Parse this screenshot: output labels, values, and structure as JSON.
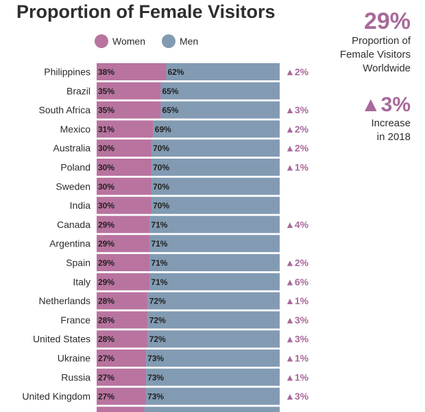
{
  "title": "Proportion of Female Visitors",
  "legend": {
    "women": "Women",
    "men": "Men"
  },
  "colors": {
    "women": "#b9739f",
    "men": "#829bb3",
    "accent": "#a8699a"
  },
  "sidebar": {
    "worldwide_pct": "29%",
    "worldwide_label_1": "Proportion of",
    "worldwide_label_2": "Female Visitors",
    "worldwide_label_3": "Worldwide",
    "increase": "▲3%",
    "increase_label_1": "Increase",
    "increase_label_2": "in 2018"
  },
  "chart_data": {
    "type": "bar",
    "stacked": true,
    "orientation": "horizontal",
    "title": "Proportion of Female Visitors",
    "categories": [
      "Philippines",
      "Brazil",
      "South Africa",
      "Mexico",
      "Australia",
      "Poland",
      "Sweden",
      "India",
      "Canada",
      "Argentina",
      "Spain",
      "Italy",
      "Netherlands",
      "France",
      "United States",
      "Ukraine",
      "Russia",
      "United Kingdom"
    ],
    "series": [
      {
        "name": "Women",
        "values": [
          38,
          35,
          35,
          31,
          30,
          30,
          30,
          30,
          29,
          29,
          29,
          29,
          28,
          28,
          28,
          27,
          27,
          27
        ]
      },
      {
        "name": "Men",
        "values": [
          62,
          65,
          65,
          69,
          70,
          70,
          70,
          70,
          71,
          71,
          71,
          71,
          72,
          72,
          72,
          73,
          73,
          73
        ]
      }
    ],
    "changes": [
      "▲2%",
      "",
      "▲3%",
      "▲2%",
      "▲2%",
      "▲1%",
      "",
      "",
      "▲4%",
      "",
      "▲2%",
      "▲6%",
      "▲1%",
      "▲3%",
      "▲3%",
      "▲1%",
      "▲1%",
      "▲3%"
    ],
    "xlim": [
      0,
      100
    ]
  }
}
